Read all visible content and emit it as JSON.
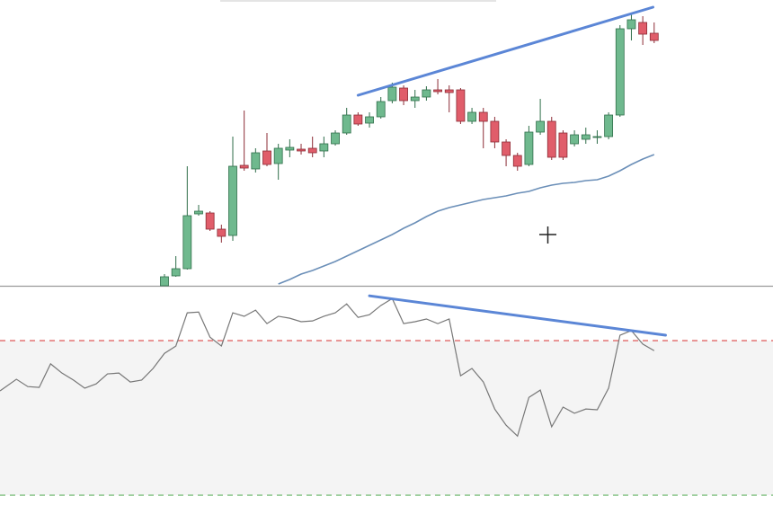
{
  "chart_data": [
    {
      "type": "candlestick",
      "ylim": [
        0,
        318
      ],
      "up_color": "#6fb98e",
      "up_edge": "#2f6e4a",
      "down_color": "#e05d6a",
      "down_edge": "#8c2c36",
      "open": [
        null,
        null,
        null,
        null,
        null,
        null,
        null,
        null,
        null,
        null,
        null,
        null,
        null,
        null,
        0,
        11,
        19,
        80,
        81,
        63,
        56,
        134,
        130,
        150,
        136,
        151,
        152,
        153,
        150,
        158,
        170,
        190,
        181,
        188,
        206,
        220,
        206,
        210,
        218,
        218,
        218,
        183,
        193,
        183,
        160,
        145,
        135,
        171,
        183,
        170,
        158,
        163,
        165,
        166,
        190,
        286,
        293,
        281
      ],
      "high": [
        null,
        null,
        null,
        null,
        null,
        null,
        null,
        null,
        null,
        null,
        null,
        null,
        null,
        null,
        13,
        33,
        133,
        90,
        83,
        68,
        166,
        195,
        153,
        170,
        158,
        163,
        158,
        166,
        166,
        173,
        198,
        193,
        193,
        210,
        226,
        223,
        218,
        222,
        230,
        223,
        220,
        198,
        198,
        188,
        163,
        148,
        178,
        208,
        188,
        173,
        173,
        176,
        173,
        193,
        290,
        303,
        300,
        293
      ],
      "low": [
        null,
        null,
        null,
        null,
        null,
        null,
        null,
        null,
        null,
        null,
        null,
        null,
        null,
        null,
        0,
        10,
        18,
        78,
        61,
        48,
        50,
        128,
        126,
        133,
        118,
        143,
        146,
        143,
        143,
        156,
        168,
        178,
        176,
        186,
        203,
        201,
        198,
        206,
        213,
        193,
        180,
        180,
        153,
        153,
        133,
        128,
        133,
        168,
        140,
        140,
        155,
        158,
        158,
        163,
        188,
        273,
        268,
        270
      ],
      "close": [
        null,
        null,
        null,
        null,
        null,
        null,
        null,
        null,
        null,
        null,
        null,
        null,
        null,
        null,
        10,
        19,
        78,
        83,
        63,
        55,
        133,
        131,
        148,
        135,
        153,
        154,
        150,
        148,
        158,
        170,
        190,
        180,
        188,
        205,
        221,
        206,
        210,
        218,
        216,
        215,
        183,
        193,
        183,
        160,
        145,
        133,
        171,
        183,
        143,
        143,
        168,
        168,
        166,
        190,
        286,
        296,
        280,
        273
      ],
      "moving_average": {
        "color": "#6b8fb8",
        "values": [
          null,
          null,
          null,
          null,
          null,
          null,
          null,
          null,
          null,
          null,
          null,
          null,
          null,
          null,
          null,
          null,
          null,
          null,
          null,
          null,
          null,
          null,
          null,
          null,
          2,
          7,
          13,
          17,
          22,
          27,
          33,
          39,
          45,
          51,
          57,
          64,
          70,
          77,
          83,
          87,
          90,
          93,
          96,
          98,
          100,
          103,
          105,
          109,
          112,
          114,
          115,
          117,
          118,
          122,
          128,
          135,
          141,
          146
        ]
      },
      "trendline": {
        "color": "#5b86d6",
        "x": [
          31,
          56.9
        ],
        "y": [
          212,
          310
        ]
      }
    },
    {
      "type": "line",
      "ylim": [
        22.8,
        84.2
      ],
      "color": "#777777",
      "values": [
        57.0,
        60.0,
        58.1,
        57.9,
        64.0,
        61.6,
        59.8,
        57.7,
        58.8,
        61.4,
        61.6,
        59.3,
        59.8,
        62.8,
        66.7,
        68.6,
        77.2,
        77.4,
        70.9,
        68.6,
        77.2,
        76.3,
        77.9,
        74.4,
        76.3,
        75.8,
        74.9,
        75.1,
        76.3,
        77.2,
        79.5,
        76.0,
        76.7,
        79.1,
        80.9,
        74.4,
        74.9,
        75.6,
        74.4,
        75.6,
        60.9,
        62.8,
        59.3,
        52.3,
        48.1,
        45.3,
        55.3,
        57.2,
        47.7,
        52.8,
        51.2,
        52.3,
        52.1,
        57.7,
        71.4,
        72.6,
        69.1,
        67.4
      ],
      "levels": [
        {
          "value": 70,
          "color": "#e06666"
        },
        {
          "value": 30,
          "color": "#7dbf7d"
        }
      ],
      "band_color": "#f4f4f4",
      "trendline": {
        "color": "#5b86d6",
        "x": [
          32,
          58
        ],
        "y": [
          81.6,
          71.4
        ]
      }
    }
  ]
}
